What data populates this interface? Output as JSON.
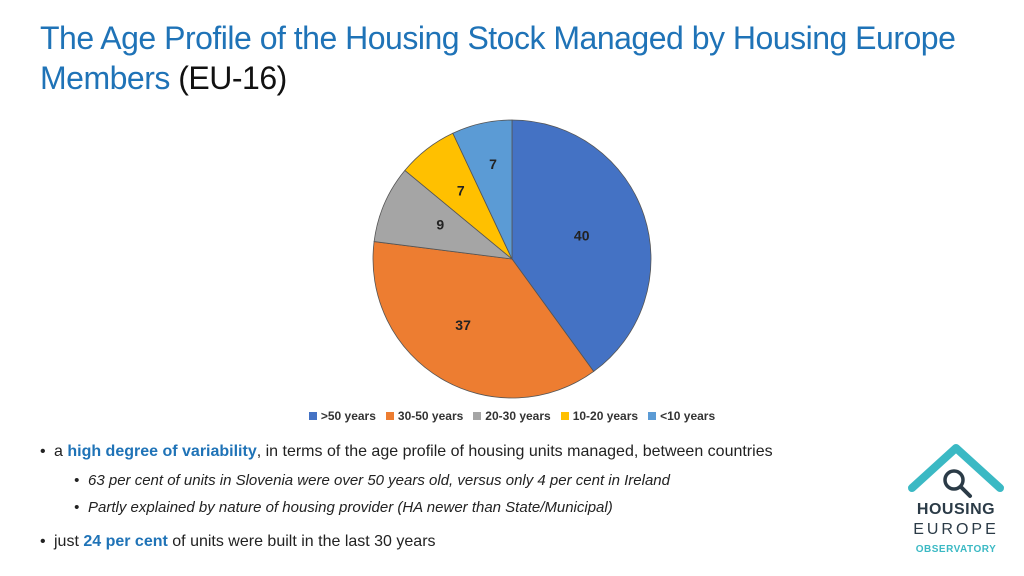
{
  "title": {
    "main": "The Age Profile of the Housing Stock Managed by Housing Europe Members",
    "suffix": "(EU-16)"
  },
  "chart_data": {
    "type": "pie",
    "categories": [
      ">50 years",
      "30-50 years",
      "20-30 years",
      "10-20 years",
      "<10 years"
    ],
    "values": [
      40,
      37,
      9,
      7,
      7
    ],
    "colors": [
      "#4472c4",
      "#ed7d31",
      "#a5a5a5",
      "#ffc000",
      "#5b9bd5"
    ],
    "legend_position": "bottom"
  },
  "bullets": {
    "b1": {
      "pre": "a ",
      "highlight": "high degree of variability",
      "post": ", in terms of the age profile of housing units managed, between countries"
    },
    "b1_sub1": "63 per cent of units in Slovenia were over 50 years old, versus only 4 per cent in Ireland",
    "b1_sub2": "Partly explained by nature of housing provider (HA newer than State/Municipal)",
    "b2": {
      "pre": "just ",
      "highlight": "24 per cent",
      "post": " of units were built in the last 30 years"
    },
    "bullet_char": "•"
  },
  "logo": {
    "line1": "HOUSING",
    "line2": "EUROPE",
    "line3": "OBSERVATORY",
    "icon": "house-magnifier-icon"
  }
}
